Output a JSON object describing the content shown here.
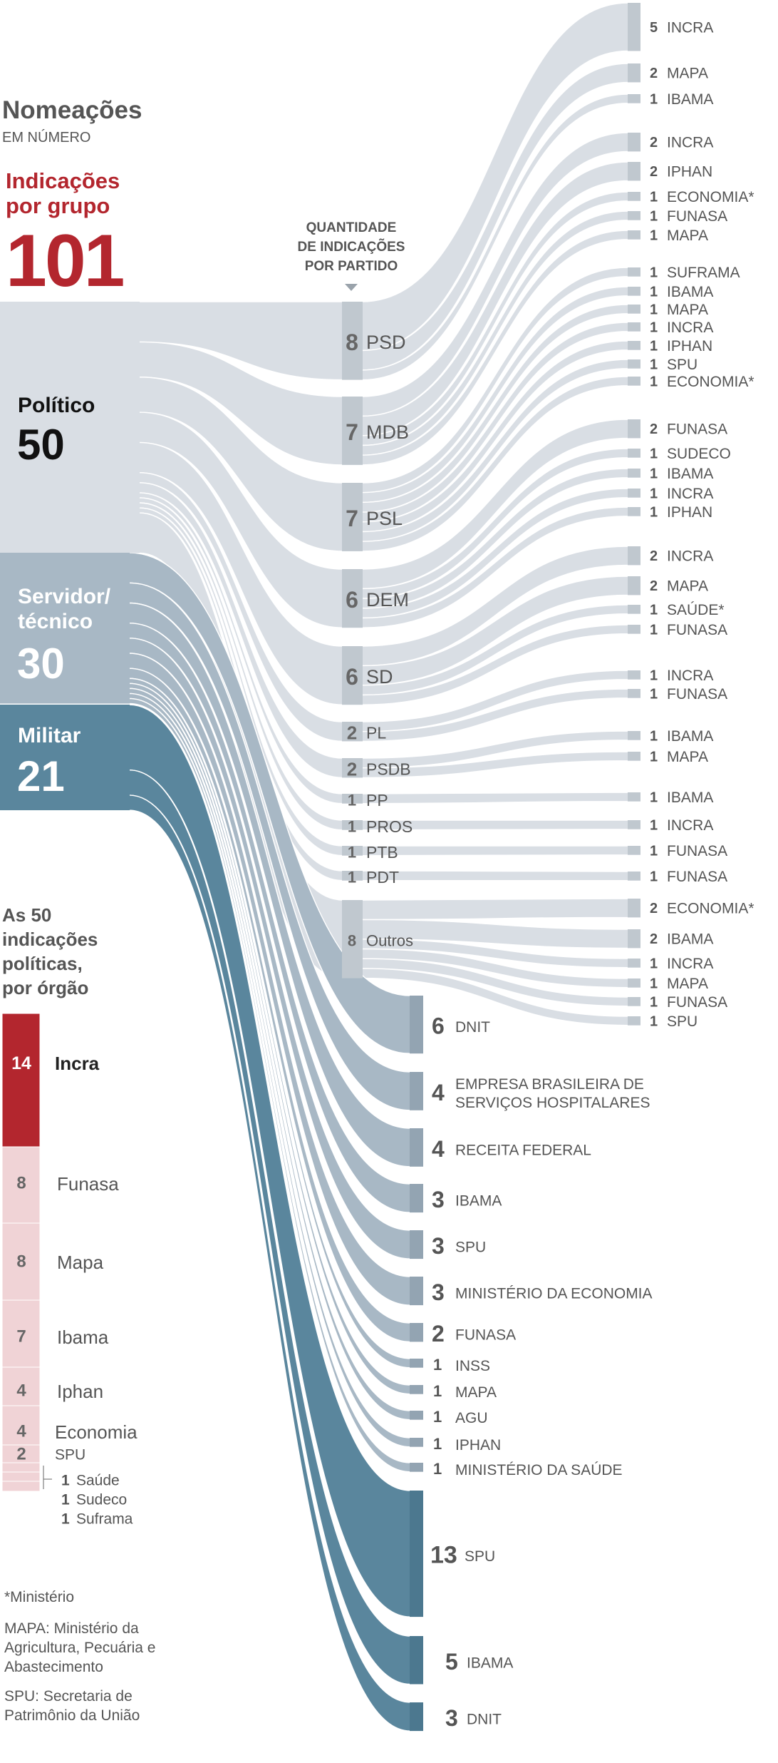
{
  "header": {
    "title": "Nomeações",
    "subtitle": "EM NÚMERO",
    "group_title_line1": "Indicações",
    "group_title_line2": "por grupo",
    "total": "101",
    "party_header_line1": "QUANTIDADE",
    "party_header_line2": "DE INDICAÇÕES",
    "party_header_line3": "POR PARTIDO"
  },
  "colors": {
    "accent_red": "#b3262e",
    "politico": "#d9dee4",
    "politico_node": "#c0c8cf",
    "servidor": "#a8b8c5",
    "servidor_node": "#93a4b2",
    "militar": "#5a869d",
    "militar_node": "#4c788f",
    "bar_pink": "#f0d3d6",
    "text_gray": "#555555"
  },
  "chart_data": {
    "type": "sankey",
    "groups": [
      {
        "key": "politico",
        "label_lines": [
          "Político"
        ],
        "value": 50
      },
      {
        "key": "servidor",
        "label_lines": [
          "Servidor/",
          "técnico"
        ],
        "value": 30
      },
      {
        "key": "militar",
        "label_lines": [
          "Militar"
        ],
        "value": 21
      }
    ],
    "parties": [
      {
        "name": "PSD",
        "value": 8,
        "targets": [
          {
            "org": "INCRA",
            "value": 5
          },
          {
            "org": "MAPA",
            "value": 2
          },
          {
            "org": "IBAMA",
            "value": 1
          }
        ]
      },
      {
        "name": "MDB",
        "value": 7,
        "targets": [
          {
            "org": "INCRA",
            "value": 2
          },
          {
            "org": "IPHAN",
            "value": 2
          },
          {
            "org": "ECONOMIA*",
            "value": 1
          },
          {
            "org": "FUNASA",
            "value": 1
          },
          {
            "org": "MAPA",
            "value": 1
          }
        ]
      },
      {
        "name": "PSL",
        "value": 7,
        "targets": [
          {
            "org": "SUFRAMA",
            "value": 1
          },
          {
            "org": "IBAMA",
            "value": 1
          },
          {
            "org": "MAPA",
            "value": 1
          },
          {
            "org": "INCRA",
            "value": 1
          },
          {
            "org": "IPHAN",
            "value": 1
          },
          {
            "org": "SPU",
            "value": 1
          },
          {
            "org": "ECONOMIA*",
            "value": 1
          }
        ]
      },
      {
        "name": "DEM",
        "value": 6,
        "targets": [
          {
            "org": "FUNASA",
            "value": 2
          },
          {
            "org": "SUDECO",
            "value": 1
          },
          {
            "org": "IBAMA",
            "value": 1
          },
          {
            "org": "INCRA",
            "value": 1
          },
          {
            "org": "IPHAN",
            "value": 1
          }
        ]
      },
      {
        "name": "SD",
        "value": 6,
        "targets": [
          {
            "org": "INCRA",
            "value": 2
          },
          {
            "org": "MAPA",
            "value": 2
          },
          {
            "org": "SAÚDE*",
            "value": 1
          },
          {
            "org": "FUNASA",
            "value": 1
          }
        ]
      },
      {
        "name": "PL",
        "value": 2,
        "targets": [
          {
            "org": "INCRA",
            "value": 1
          },
          {
            "org": "FUNASA",
            "value": 1
          }
        ]
      },
      {
        "name": "PSDB",
        "value": 2,
        "targets": [
          {
            "org": "IBAMA",
            "value": 1
          },
          {
            "org": "MAPA",
            "value": 1
          }
        ]
      },
      {
        "name": "PP",
        "value": 1,
        "targets": [
          {
            "org": "IBAMA",
            "value": 1
          }
        ]
      },
      {
        "name": "PROS",
        "value": 1,
        "targets": [
          {
            "org": "INCRA",
            "value": 1
          }
        ]
      },
      {
        "name": "PTB",
        "value": 1,
        "targets": [
          {
            "org": "FUNASA",
            "value": 1
          }
        ]
      },
      {
        "name": "PDT",
        "value": 1,
        "targets": [
          {
            "org": "FUNASA",
            "value": 1
          }
        ]
      },
      {
        "name": "Outros",
        "value": 8,
        "targets": [
          {
            "org": "ECONOMIA*",
            "value": 2
          },
          {
            "org": "IBAMA",
            "value": 2
          },
          {
            "org": "INCRA",
            "value": 1
          },
          {
            "org": "MAPA",
            "value": 1
          },
          {
            "org": "FUNASA",
            "value": 1
          },
          {
            "org": "SPU",
            "value": 1
          }
        ]
      }
    ],
    "servidor_targets": [
      {
        "org": "DNIT",
        "value": 6
      },
      {
        "org": "EMPRESA BRASILEIRA DE|SERVIÇOS HOSPITALARES",
        "value": 4
      },
      {
        "org": "RECEITA FEDERAL",
        "value": 4
      },
      {
        "org": "IBAMA",
        "value": 3
      },
      {
        "org": "SPU",
        "value": 3
      },
      {
        "org": "MINISTÉRIO DA ECONOMIA",
        "value": 3
      },
      {
        "org": "FUNASA",
        "value": 2
      },
      {
        "org": "INSS",
        "value": 1
      },
      {
        "org": "MAPA",
        "value": 1
      },
      {
        "org": "AGU",
        "value": 1
      },
      {
        "org": "IPHAN",
        "value": 1
      },
      {
        "org": "MINISTÉRIO DA SAÚDE",
        "value": 1
      }
    ],
    "militar_targets": [
      {
        "org": "SPU",
        "value": 13
      },
      {
        "org": "IBAMA",
        "value": 5
      },
      {
        "org": "DNIT",
        "value": 3
      }
    ]
  },
  "by_agency": {
    "title_lines": [
      "As 50",
      "indicações",
      "políticas,",
      "por órgão"
    ],
    "items": [
      {
        "name": "Incra",
        "value": 14
      },
      {
        "name": "Funasa",
        "value": 8
      },
      {
        "name": "Mapa",
        "value": 8
      },
      {
        "name": "Ibama",
        "value": 7
      },
      {
        "name": "Iphan",
        "value": 4
      },
      {
        "name": "Economia",
        "value": 4
      },
      {
        "name": "SPU",
        "value": 2
      },
      {
        "name": "Saúde",
        "value": 1
      },
      {
        "name": "Sudeco",
        "value": 1
      },
      {
        "name": "Suframa",
        "value": 1
      }
    ]
  },
  "footnotes": {
    "asterisk": "*Ministério",
    "mapa_lines": [
      "MAPA: Ministério da",
      "Agricultura, Pecuária e",
      "Abastecimento"
    ],
    "spu_lines": [
      "SPU: Secretaria de",
      "Patrimônio da União"
    ]
  }
}
